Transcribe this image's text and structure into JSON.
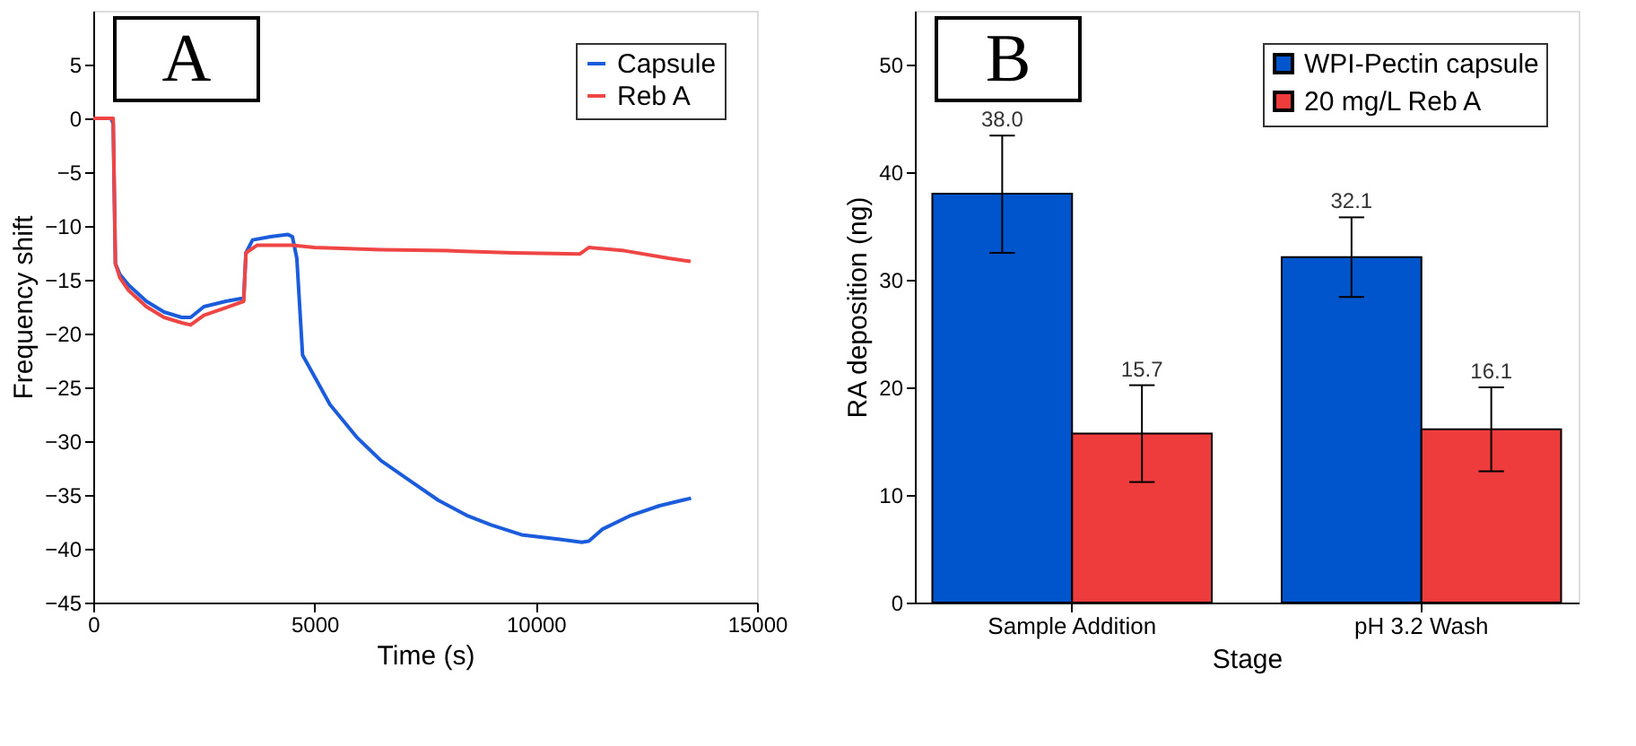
{
  "chart_data": [
    {
      "type": "line",
      "xlabel": "Time (s)",
      "ylabel": "Frequency shift",
      "xlim": [
        0,
        15000
      ],
      "xticks": [
        0,
        5000,
        10000,
        15000
      ],
      "ylim": [
        -45,
        10
      ],
      "yticks": [
        -45,
        -40,
        -35,
        -30,
        -25,
        -20,
        -15,
        -10,
        -5,
        0,
        5
      ],
      "grid": false,
      "legend": "top right",
      "marker": "none",
      "line_style": "solid",
      "annotations": [
        "A"
      ],
      "series": [
        {
          "name": "Capsule",
          "color": "#1a5cdb",
          "x": [
            0,
            400,
            450,
            500,
            600,
            800,
            1200,
            1600,
            2000,
            2200,
            2500,
            3000,
            3400,
            3450,
            3600,
            4000,
            4400,
            4500,
            4600,
            4730,
            5000,
            5350,
            5970,
            6500,
            7200,
            7800,
            8440,
            9000,
            9680,
            10500,
            11040,
            11200,
            11500,
            12150,
            12800,
            13510
          ],
          "values": [
            0,
            0,
            -0.5,
            -13.5,
            -14.5,
            -15.5,
            -17,
            -18,
            -18.5,
            -18.5,
            -17.5,
            -17,
            -16.7,
            -12.5,
            -11.3,
            -11,
            -10.8,
            -11,
            -13,
            -22,
            -24,
            -26.6,
            -29.7,
            -31.8,
            -33.8,
            -35.5,
            -36.9,
            -37.8,
            -38.7,
            -39.1,
            -39.4,
            -39.3,
            -38.2,
            -36.9,
            -36,
            -35.3
          ]
        },
        {
          "name": "Reb A",
          "color": "#f04545",
          "x": [
            0,
            450,
            480,
            500,
            600,
            800,
            1200,
            1600,
            2000,
            2200,
            2500,
            3000,
            3400,
            3450,
            3700,
            4500,
            5000,
            6500,
            8000,
            9500,
            11000,
            11200,
            12000,
            13000,
            13500
          ],
          "values": [
            0,
            0,
            -8,
            -13.5,
            -14.8,
            -16,
            -17.5,
            -18.5,
            -19,
            -19.2,
            -18.3,
            -17.6,
            -17,
            -12.5,
            -11.8,
            -11.8,
            -12,
            -12.2,
            -12.3,
            -12.5,
            -12.6,
            -12,
            -12.3,
            -13,
            -13.3
          ]
        }
      ]
    },
    {
      "type": "bar",
      "xlabel": "Stage",
      "ylabel": "RA deposition (ng)",
      "categories": [
        "Sample Addition",
        "pH 3.2 Wash"
      ],
      "ylim": [
        0,
        55
      ],
      "yticks": [
        0,
        10,
        20,
        30,
        40,
        50
      ],
      "grid": false,
      "legend": "top right",
      "annotations": [
        "B"
      ],
      "series": [
        {
          "name": "WPI-Pectin capsule",
          "color": "#0055cc",
          "values": [
            38.0,
            32.1
          ],
          "value_labels": [
            "38.0",
            "32.1"
          ],
          "errors": [
            [
              32.5,
              43.4
            ],
            [
              28.4,
              35.8
            ]
          ]
        },
        {
          "name": "20 mg/L Reb A",
          "color": "#ee3b3b",
          "values": [
            15.7,
            16.1
          ],
          "value_labels": [
            "15.7",
            "16.1"
          ],
          "errors": [
            [
              11.2,
              20.2
            ],
            [
              12.2,
              20.0
            ]
          ]
        }
      ]
    }
  ]
}
